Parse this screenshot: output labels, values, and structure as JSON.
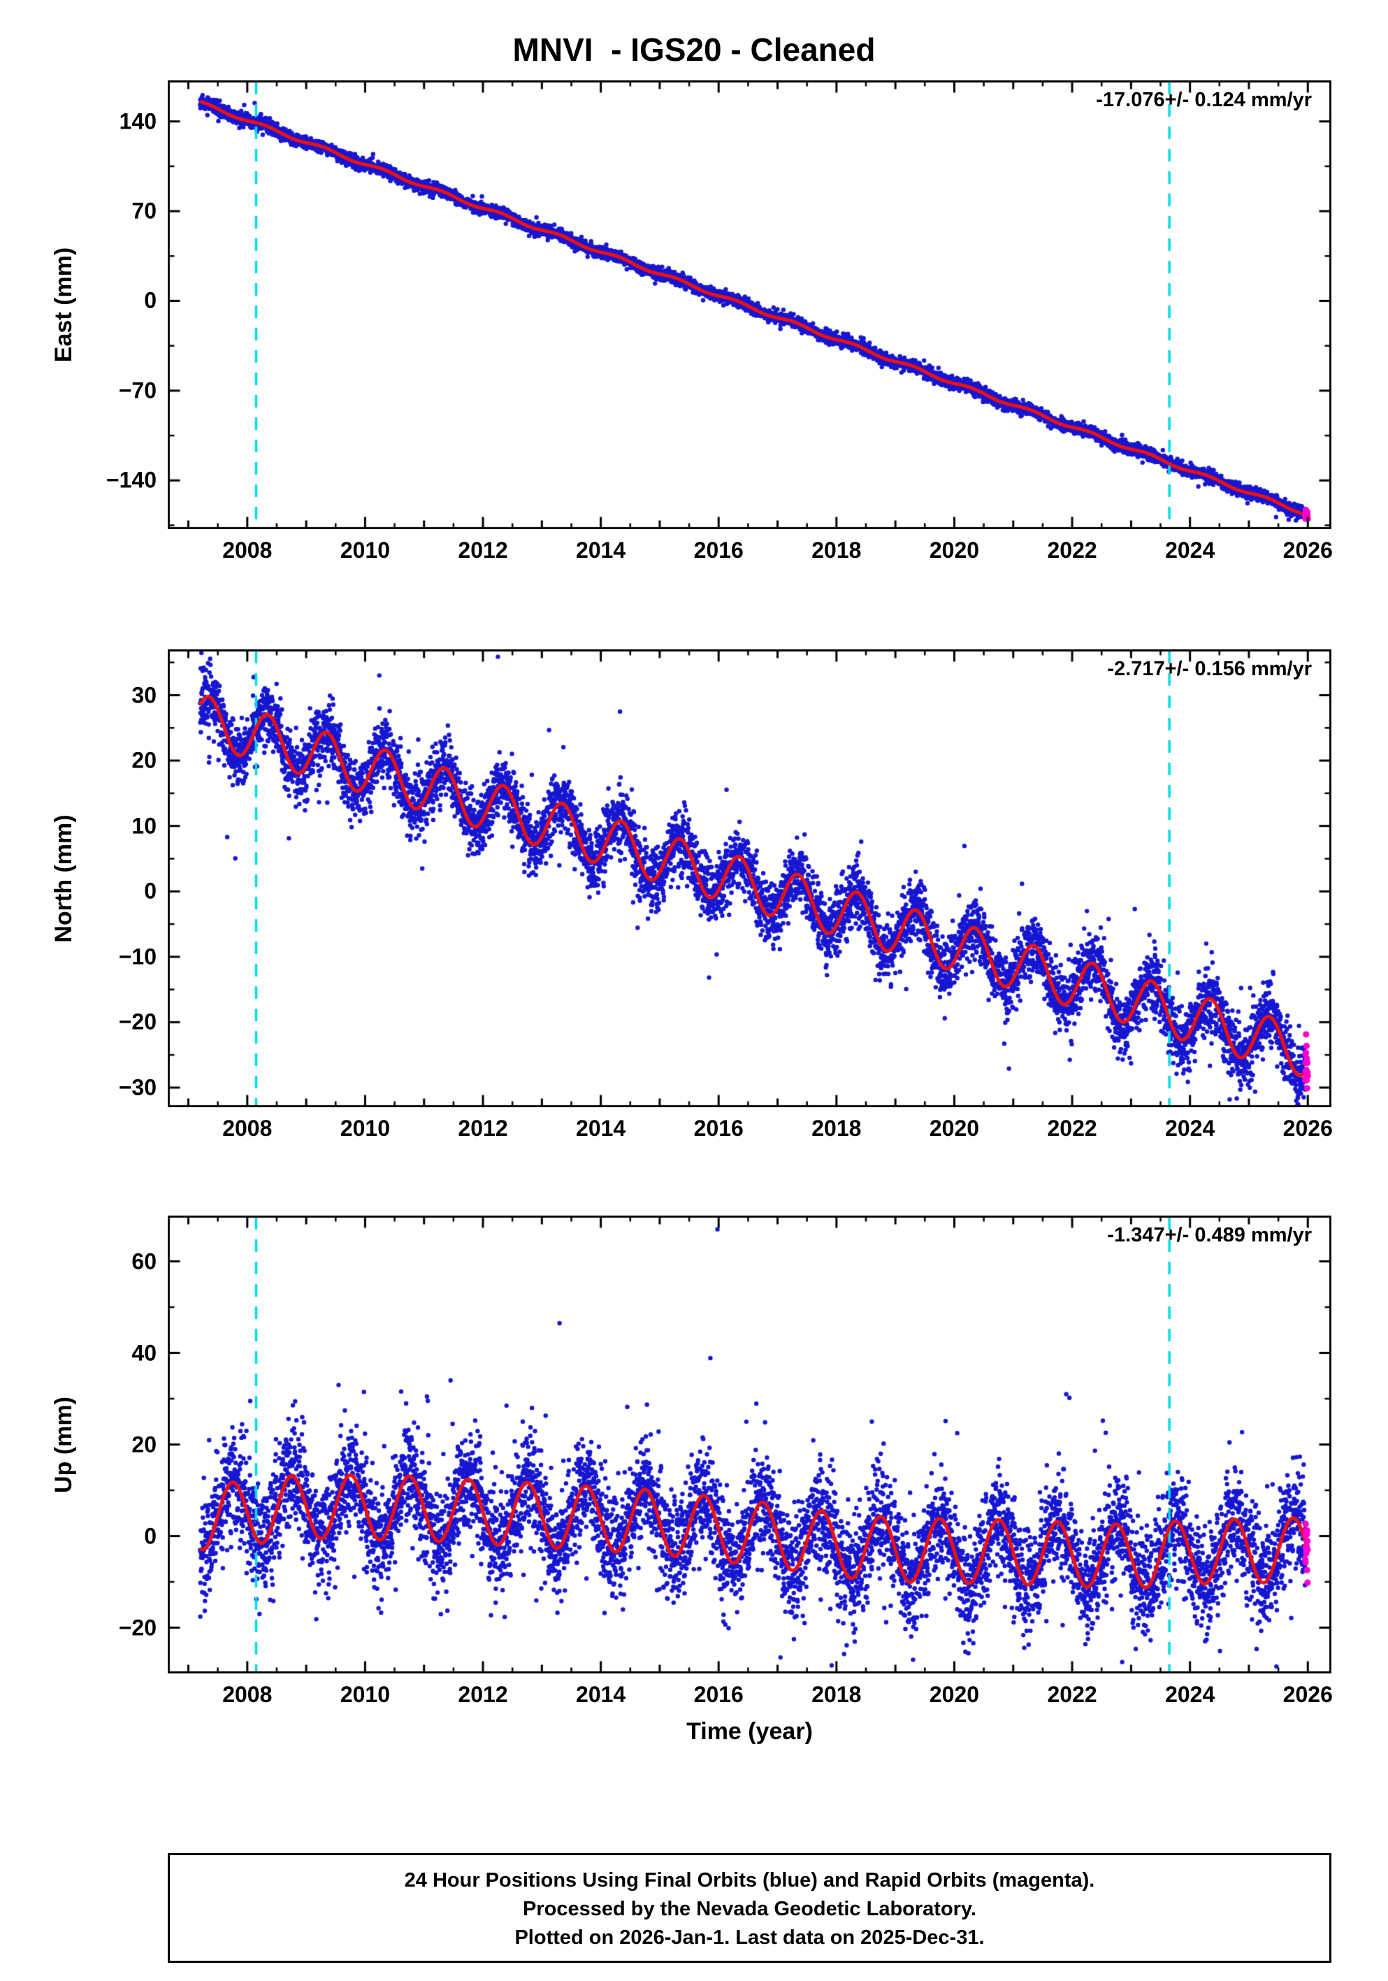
{
  "title": "MNVI  - IGS20 - Cleaned",
  "xlabel": "Time (year)",
  "footer": {
    "line1": "24 Hour Positions Using Final Orbits (blue) and Rapid Orbits (magenta).",
    "line2": "Processed by the Nevada Geodetic Laboratory.",
    "line3": "Plotted on 2026-Jan-1. Last data on 2025-Dec-31."
  },
  "colors": {
    "final_orbits": "#1717d2",
    "rapid_orbits": "#ff00cc",
    "model_line": "#ee1111",
    "event_line": "#00dde8",
    "axis": "#000000"
  },
  "x_axis": {
    "lim": [
      2006.65,
      2026.4
    ],
    "ticks": [
      2008,
      2010,
      2012,
      2014,
      2016,
      2018,
      2020,
      2022,
      2024,
      2026
    ],
    "minor_step": 0.5,
    "data_start": 2007.2,
    "data_end": 2026.0,
    "rapid_start": 2025.955
  },
  "event_lines_x": [
    2008.15,
    2023.65
  ],
  "chart_data": [
    {
      "type": "scatter",
      "component": "east",
      "ylabel": "East (mm)",
      "rate_label": "-17.076+/- 0.124 mm/yr",
      "ylim": [
        -178,
        172
      ],
      "yticks": [
        140,
        70,
        0,
        -70,
        -140
      ],
      "y_minor_step": 35,
      "trend": {
        "slope_mm_per_yr": -17.076,
        "zero_crossing_year": 2016.25
      },
      "annual": {
        "amp": 1.2,
        "phase": 0.05
      },
      "scatter_sigma": 2.3,
      "wild_frac": 0.012,
      "wild_sigma": 5,
      "rapid_sigma": 1.8,
      "seed": 11,
      "outliers": []
    },
    {
      "type": "scatter",
      "component": "north",
      "ylabel": "North (mm)",
      "rate_label": "-2.717+/- 0.156 mm/yr",
      "ylim": [
        -33,
        37
      ],
      "yticks": [
        30,
        20,
        10,
        0,
        -10,
        -20,
        -30
      ],
      "y_minor_step": 5,
      "trend": {
        "slope_mm_per_yr": -2.717,
        "zero_crossing_year": 2016.9
      },
      "annual": {
        "amp": 3.8,
        "phase": 0.1
      },
      "scatter_sigma": 2.4,
      "wild_frac": 0.025,
      "wild_sigma": 5.5,
      "rapid_sigma": 2.6,
      "seed": 22,
      "outliers": []
    },
    {
      "type": "scatter",
      "component": "up",
      "ylabel": "Up (mm)",
      "rate_label": "-1.347+/- 0.489 mm/yr",
      "ylim": [
        -30,
        70
      ],
      "yticks": [
        60,
        40,
        20,
        0,
        -20
      ],
      "y_minor_step": 10,
      "trend_anchors": {
        "x": [
          2007.2,
          2009,
          2011,
          2013,
          2015,
          2016,
          2017,
          2018,
          2019,
          2021,
          2023,
          2024,
          2026
        ],
        "y": [
          4,
          6.5,
          6,
          4.5,
          3,
          1.5,
          0,
          -2,
          -3,
          -3.5,
          -4.5,
          -3.5,
          -3
        ]
      },
      "annual": {
        "amp": 7,
        "phase": 0.5
      },
      "scatter_sigma": 5.5,
      "wild_frac": 0.05,
      "wild_sigma": 10,
      "rapid_sigma": 4,
      "seed": 33,
      "outliers": [
        {
          "x": 2008.05,
          "y": 29.5
        },
        {
          "x": 2009.55,
          "y": 33
        },
        {
          "x": 2009.98,
          "y": 31.5
        },
        {
          "x": 2011.05,
          "y": 30.5
        },
        {
          "x": 2011.45,
          "y": 34
        },
        {
          "x": 2012.4,
          "y": 28.5
        },
        {
          "x": 2013.3,
          "y": 46.5
        },
        {
          "x": 2015.98,
          "y": 67
        },
        {
          "x": 2018.6,
          "y": 25
        },
        {
          "x": 2020.05,
          "y": 22.5
        },
        {
          "x": 2021.9,
          "y": 31
        },
        {
          "x": 2017.05,
          "y": -26.5
        },
        {
          "x": 2019.3,
          "y": -27
        },
        {
          "x": 2022.85,
          "y": -27.5
        }
      ]
    }
  ]
}
